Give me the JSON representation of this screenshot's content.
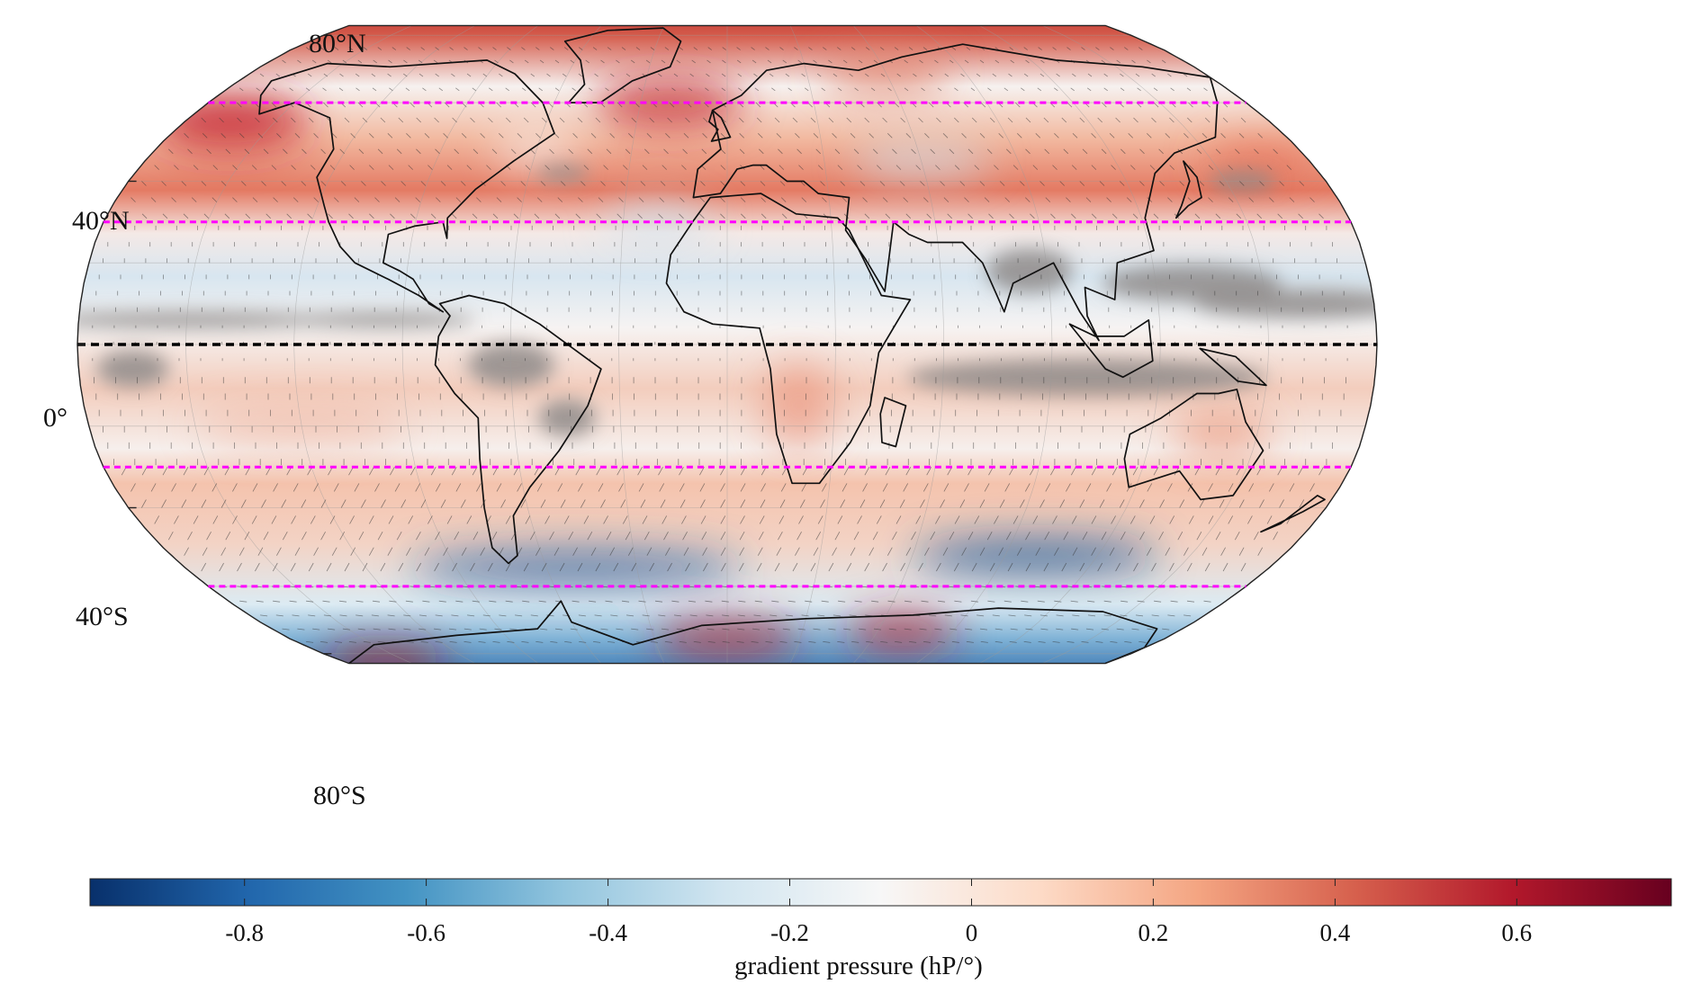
{
  "map": {
    "projection": "robinson",
    "graticule": true,
    "coastlines": true,
    "lat_labels": [
      "80°N",
      "40°N",
      "0°",
      "40°S",
      "80°S"
    ],
    "reference_lines": {
      "equator": {
        "lat": 0,
        "color": "#000000",
        "style": "dashed"
      },
      "bands": {
        "lats": [
          60,
          30,
          -30,
          -60
        ],
        "color": "#ff00ff",
        "style": "dashed"
      }
    },
    "field_colors": {
      "strong_negative": "#0b3e7a",
      "neutral": "#f4f4f4",
      "strong_positive": "#8a0f18",
      "masked": "#9a9a9a"
    }
  },
  "colorbar": {
    "label": "gradient pressure (hP/°)",
    "range": [
      -0.97,
      0.77
    ],
    "ticks": [
      "-0.8",
      "-0.6",
      "-0.4",
      "-0.2",
      "0",
      "0.2",
      "0.4",
      "0.6"
    ],
    "tick_values": [
      -0.8,
      -0.6,
      -0.4,
      -0.2,
      0,
      0.2,
      0.4,
      0.6
    ],
    "colormap": [
      "#08306b",
      "#2166ac",
      "#4393c3",
      "#92c5de",
      "#d1e5f0",
      "#f7f7f7",
      "#fddbc7",
      "#f4a582",
      "#d6604d",
      "#b2182b",
      "#67001f"
    ]
  }
}
